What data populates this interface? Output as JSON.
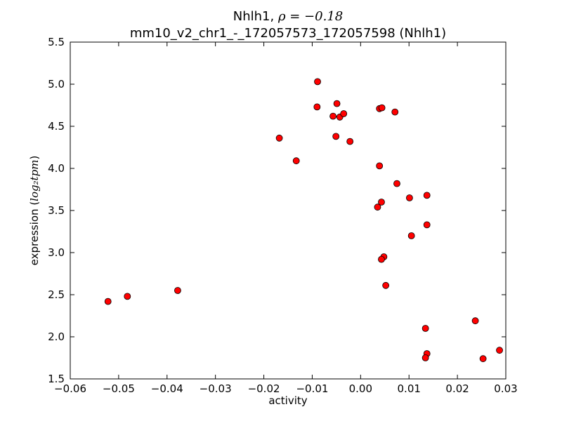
{
  "chart_data": {
    "type": "scatter",
    "title": "Nhlh1, ",
    "title_math": "ρ = −0.18",
    "subtitle": "mm10_v2_chr1_-_172057573_172057598 (Nhlh1)",
    "xlabel": "activity",
    "ylabel_prefix": "expression (",
    "ylabel_math": "log₂tpm",
    "ylabel_suffix": ")",
    "xlim": [
      -0.06,
      0.03
    ],
    "ylim": [
      1.5,
      5.5
    ],
    "x_ticks": [
      -0.06,
      -0.05,
      -0.04,
      -0.03,
      -0.02,
      -0.01,
      0.0,
      0.01,
      0.02,
      0.03
    ],
    "x_tick_labels": [
      "−0.06",
      "−0.05",
      "−0.04",
      "−0.03",
      "−0.02",
      "−0.01",
      "0.00",
      "0.01",
      "0.02",
      "0.03"
    ],
    "y_ticks": [
      1.5,
      2.0,
      2.5,
      3.0,
      3.5,
      4.0,
      4.5,
      5.0,
      5.5
    ],
    "y_tick_labels": [
      "1.5",
      "2.0",
      "2.5",
      "3.0",
      "3.5",
      "4.0",
      "4.5",
      "5.0",
      "5.5"
    ],
    "grid": false,
    "marker_color": "#ff0000",
    "marker_edge_color": "#000000",
    "points": [
      {
        "x": -0.0522,
        "y": 2.42
      },
      {
        "x": -0.0482,
        "y": 2.48
      },
      {
        "x": -0.0378,
        "y": 2.55
      },
      {
        "x": -0.0168,
        "y": 4.36
      },
      {
        "x": -0.0133,
        "y": 4.09
      },
      {
        "x": -0.0089,
        "y": 5.03
      },
      {
        "x": -0.009,
        "y": 4.73
      },
      {
        "x": -0.0057,
        "y": 4.62
      },
      {
        "x": -0.0049,
        "y": 4.77
      },
      {
        "x": -0.0043,
        "y": 4.61
      },
      {
        "x": -0.0035,
        "y": 4.65
      },
      {
        "x": -0.0051,
        "y": 4.38
      },
      {
        "x": -0.0022,
        "y": 4.32
      },
      {
        "x": 0.0039,
        "y": 4.71
      },
      {
        "x": 0.0044,
        "y": 4.72
      },
      {
        "x": 0.0071,
        "y": 4.67
      },
      {
        "x": 0.0039,
        "y": 4.03
      },
      {
        "x": 0.0075,
        "y": 3.82
      },
      {
        "x": 0.0101,
        "y": 3.65
      },
      {
        "x": 0.0137,
        "y": 3.68
      },
      {
        "x": 0.0035,
        "y": 3.54
      },
      {
        "x": 0.0043,
        "y": 3.6
      },
      {
        "x": 0.0137,
        "y": 3.33
      },
      {
        "x": 0.0105,
        "y": 3.2
      },
      {
        "x": 0.0048,
        "y": 2.95
      },
      {
        "x": 0.0043,
        "y": 2.92
      },
      {
        "x": 0.0052,
        "y": 2.61
      },
      {
        "x": 0.0134,
        "y": 2.1
      },
      {
        "x": 0.0237,
        "y": 2.19
      },
      {
        "x": 0.0137,
        "y": 1.8
      },
      {
        "x": 0.0134,
        "y": 1.75
      },
      {
        "x": 0.0253,
        "y": 1.74
      },
      {
        "x": 0.0287,
        "y": 1.84
      }
    ]
  }
}
